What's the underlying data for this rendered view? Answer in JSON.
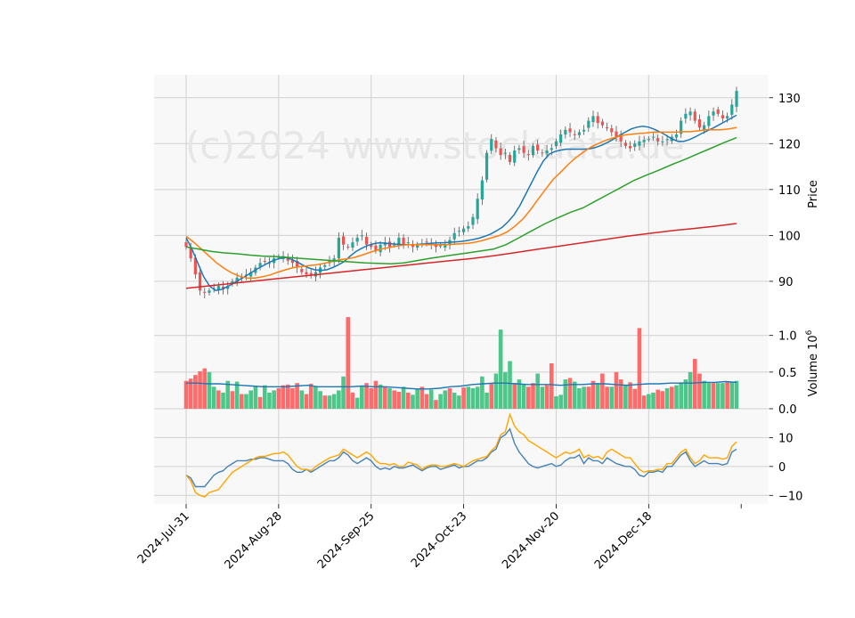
{
  "watermark": "(c)2024 www.stockdata.de",
  "colors": {
    "up": "#26a69a",
    "up_bar": "#4dc789",
    "down": "#ef5350",
    "down_bar": "#ff6b6b",
    "ma_short": "#1f77b4",
    "ma_mid": "#ff7f0e",
    "ma_long": "#2ca02c",
    "ma_200": "#d62728",
    "osc_a": "#4682b4",
    "osc_b": "#ffa500",
    "panel_bg": "#f8f8f8",
    "grid": "#d0d0d0"
  },
  "chart_data": [
    {
      "type": "candlestick",
      "panel": "price",
      "ylabel": "Price",
      "ylim": [
        83,
        135
      ],
      "yticks": [
        90,
        100,
        110,
        120,
        130
      ],
      "x_tick_labels": [
        "2024-Jul-31",
        "2024-Aug-28",
        "2024-Sep-25",
        "2024-Oct-23",
        "2024-Nov-20",
        "2024-Dec-18"
      ],
      "x_tick_index": [
        0,
        20,
        40,
        60,
        80,
        100
      ],
      "n_sessions": 120,
      "candles_summary": "one candle per session; closes approximately as listed",
      "closes": [
        97.5,
        95,
        91.5,
        88,
        87.5,
        88,
        88.5,
        89,
        88.2,
        89,
        90,
        90.8,
        91,
        91.5,
        92,
        93,
        94,
        94.3,
        94,
        95,
        95.3,
        95.5,
        94.5,
        94,
        93,
        92,
        91.5,
        91.5,
        92,
        93,
        93.5,
        94.5,
        95,
        99.5,
        98,
        97.5,
        98.5,
        99.5,
        100,
        98,
        97.5,
        96.8,
        98,
        98.5,
        97.5,
        98,
        99.5,
        98,
        98.5,
        97.5,
        98,
        98.2,
        98.5,
        98,
        97.5,
        97.8,
        98,
        99,
        100.5,
        101,
        101.5,
        102,
        104,
        108,
        112,
        118,
        121,
        119,
        117.5,
        118,
        116,
        118.5,
        119,
        118,
        117.5,
        119.5,
        118.5,
        118,
        118.5,
        119,
        120.5,
        122,
        123,
        122.5,
        122,
        122.5,
        123,
        125,
        126,
        124.5,
        124,
        123.5,
        122.5,
        121.5,
        120.5,
        119.5,
        119,
        120,
        120.5,
        120.8,
        121,
        121.5,
        120.5,
        120.5,
        121,
        121.5,
        122,
        125,
        126.5,
        127,
        125,
        123.5,
        124,
        126,
        127,
        126.5,
        125.5,
        126,
        128.5,
        131.5
      ],
      "series": [
        {
          "name": "",
          "color_key": "ma_short",
          "values": [
            99.5,
            97,
            94,
            91,
            89,
            88,
            88.2,
            88.8,
            89.5,
            90.3,
            91,
            91.8,
            92.6,
            93.3,
            94,
            94.6,
            95,
            95.2,
            94.8,
            94.2,
            93.5,
            92.9,
            92.5,
            92.4,
            92.5,
            93,
            93.6,
            94.3,
            95.5,
            96.5,
            97.2,
            97.8,
            98.2,
            98.4,
            98.3,
            98.2,
            98.1,
            98,
            98,
            98,
            98.1,
            98.2,
            98.3,
            98.4,
            98.4,
            98.5,
            98.6,
            98.7,
            98.9,
            99.1,
            99.4,
            99.8,
            100.3,
            101,
            101.8,
            103,
            104.5,
            106.5,
            109,
            111.5,
            114,
            116.2,
            117.7,
            118.3,
            118.6,
            118.8,
            118.8,
            118.8,
            118.8,
            118.9,
            119.2,
            119.7,
            120.3,
            121,
            121.8,
            122.5,
            123.2,
            123.6,
            123.8,
            123.6,
            123.1,
            122.5,
            121.8,
            121,
            120.5,
            120.5,
            120.9,
            121.5,
            122.2,
            122.8,
            123.4,
            124.1,
            124.8,
            125.5,
            126.2
          ]
        },
        {
          "name": "",
          "color_key": "ma_mid",
          "values": [
            99.8,
            98.5,
            97,
            95.5,
            94,
            92.8,
            91.8,
            91.1,
            90.7,
            90.7,
            91,
            91.4,
            92,
            92.5,
            93,
            93.2,
            93.4,
            93.6,
            93.9,
            94.3,
            94.7,
            94.9,
            95.2,
            95.7,
            96.3,
            96.8,
            97.2,
            97.5,
            97.8,
            98,
            98,
            98,
            98,
            98,
            98,
            98.1,
            98.2,
            98.3,
            98.6,
            99,
            99.5,
            100,
            100.8,
            102,
            103.5,
            105.5,
            107.8,
            110,
            112.2,
            113.8,
            115.5,
            117,
            118.2,
            119.3,
            120.1,
            120.8,
            121.3,
            121.8,
            122,
            122.2,
            122.3,
            122.5,
            122.5,
            122.5,
            122.5,
            122.6,
            122.6,
            122.8,
            123,
            123,
            123,
            123.2,
            123.5
          ]
        },
        {
          "name": "",
          "color_key": "ma_long",
          "values": [
            97.5,
            97,
            96.5,
            96.2,
            96,
            95.7,
            95.5,
            95.4,
            95.2,
            95,
            94.8,
            94.6,
            94.4,
            94.2,
            94,
            93.9,
            93.8,
            94,
            94.5,
            95,
            95.4,
            95.8,
            96.2,
            96.6,
            97,
            98,
            99.5,
            101,
            102.5,
            103.8,
            105,
            106,
            107.5,
            109,
            110.5,
            112,
            113.2,
            114.3,
            115.5,
            116.6,
            117.8,
            119,
            120.2,
            121.3
          ]
        },
        {
          "name": "",
          "color_key": "ma_200",
          "values": [
            88.5,
            89,
            89.5,
            90,
            90.5,
            91,
            91.5,
            92,
            92.5,
            93,
            93.5,
            94,
            94.5,
            95,
            95.6,
            96.3,
            97,
            97.7,
            98.4,
            99.1,
            99.8,
            100.4,
            101,
            101.5,
            102,
            102.6
          ]
        }
      ]
    },
    {
      "type": "bar",
      "panel": "volume",
      "ylabel": "Volume  10^6",
      "ylim": [
        0,
        1.3
      ],
      "yticks": [
        0.0,
        0.5,
        1.0
      ],
      "ytick_labels": [
        "0.0",
        "0.5",
        "1.0"
      ],
      "values": [
        0.38,
        0.41,
        0.46,
        0.51,
        0.55,
        0.5,
        0.3,
        0.25,
        0.22,
        0.38,
        0.24,
        0.37,
        0.2,
        0.2,
        0.25,
        0.3,
        0.16,
        0.32,
        0.22,
        0.25,
        0.28,
        0.32,
        0.33,
        0.28,
        0.35,
        0.25,
        0.2,
        0.34,
        0.3,
        0.24,
        0.18,
        0.18,
        0.2,
        0.25,
        0.44,
        1.25,
        0.22,
        0.15,
        0.3,
        0.35,
        0.28,
        0.38,
        0.33,
        0.3,
        0.28,
        0.25,
        0.23,
        0.3,
        0.22,
        0.19,
        0.27,
        0.3,
        0.2,
        0.26,
        0.12,
        0.2,
        0.25,
        0.28,
        0.22,
        0.18,
        0.29,
        0.3,
        0.28,
        0.3,
        0.44,
        0.22,
        0.34,
        0.48,
        1.08,
        0.5,
        0.65,
        0.35,
        0.4,
        0.34,
        0.3,
        0.35,
        0.48,
        0.3,
        0.32,
        0.62,
        0.17,
        0.19,
        0.4,
        0.42,
        0.37,
        0.28,
        0.3,
        0.3,
        0.38,
        0.35,
        0.48,
        0.3,
        0.3,
        0.5,
        0.4,
        0.33,
        0.36,
        0.27,
        1.1,
        0.18,
        0.2,
        0.22,
        0.26,
        0.24,
        0.28,
        0.3,
        0.32,
        0.36,
        0.4,
        0.5,
        0.68,
        0.48,
        0.38,
        0.35,
        0.35,
        0.35,
        0.35,
        0.36,
        0.37,
        0.38
      ],
      "up": [
        false,
        false,
        false,
        false,
        false,
        true,
        true,
        false,
        true,
        true,
        false,
        true,
        false,
        true,
        true,
        true,
        false,
        true,
        true,
        true,
        false,
        false,
        false,
        false,
        false,
        true,
        false,
        false,
        true,
        true,
        false,
        true,
        true,
        true,
        true,
        false,
        false,
        true,
        true,
        false,
        false,
        false,
        true,
        false,
        true,
        false,
        false,
        true,
        false,
        true,
        true,
        false,
        false,
        true,
        false,
        true,
        true,
        false,
        true,
        true,
        false,
        true,
        true,
        true,
        true,
        true,
        false,
        true,
        true,
        true,
        true,
        false,
        true,
        true,
        false,
        false,
        true,
        true,
        false,
        false,
        true,
        true,
        true,
        false,
        true,
        true,
        true,
        false,
        false,
        true,
        false,
        false,
        true,
        false,
        false,
        true,
        false,
        false,
        false,
        false,
        true,
        true,
        false,
        false,
        true,
        false,
        true,
        true,
        true,
        true,
        false,
        false,
        true,
        true,
        false,
        true,
        true,
        false,
        true,
        true
      ],
      "ma_line": [
        0.35,
        0.35,
        0.34,
        0.34,
        0.33,
        0.32,
        0.31,
        0.3,
        0.3,
        0.3,
        0.31,
        0.32,
        0.3,
        0.3,
        0.3,
        0.3,
        0.31,
        0.3,
        0.3,
        0.29,
        0.28,
        0.27,
        0.27,
        0.28,
        0.3,
        0.31,
        0.33,
        0.34,
        0.35,
        0.35,
        0.34,
        0.33,
        0.33,
        0.33,
        0.32,
        0.33,
        0.33,
        0.34,
        0.34,
        0.33,
        0.32,
        0.33,
        0.34,
        0.34,
        0.35,
        0.35,
        0.35,
        0.36,
        0.36,
        0.37,
        0.36
      ]
    },
    {
      "type": "line",
      "panel": "oscillator",
      "ylim": [
        -13,
        20
      ],
      "yticks": [
        -10,
        0,
        10
      ],
      "ytick_labels": [
        "−10",
        "0",
        "10"
      ],
      "series": [
        {
          "name": "",
          "color_key": "osc_a",
          "values": [
            -3,
            -4,
            -7,
            -7,
            -7,
            -5,
            -3,
            -2,
            -1.5,
            0,
            1,
            2,
            2,
            2,
            2.5,
            2.5,
            3,
            3,
            2.5,
            2,
            2,
            2,
            1,
            -1,
            -2,
            -2,
            -1,
            -2,
            -1,
            0,
            1,
            2,
            2,
            3,
            5,
            4,
            2,
            1,
            2,
            3,
            2,
            0,
            -1,
            -0.5,
            -1,
            0,
            -0.5,
            -0.5,
            0,
            0.5,
            -0.5,
            -1.5,
            -0.5,
            0,
            0,
            -1,
            -0.5,
            0,
            0.5,
            -0.5,
            0,
            0,
            1,
            2,
            2,
            3,
            5,
            6,
            10,
            11,
            13,
            8,
            5,
            3,
            1,
            0,
            -0.5,
            0,
            0.5,
            1,
            0,
            0.5,
            2,
            3,
            3,
            4,
            1,
            3,
            2,
            2,
            1,
            3,
            2,
            1,
            0.5,
            0,
            0,
            -1,
            -3,
            -3.5,
            -2,
            -2,
            -1.5,
            -2,
            0,
            0,
            2,
            4,
            5,
            2,
            0,
            1,
            2,
            1,
            1,
            1,
            0.5,
            1,
            5,
            6
          ]
        },
        {
          "name": "",
          "color_key": "osc_b",
          "values": [
            -3,
            -5,
            -9,
            -10,
            -10.5,
            -9,
            -8.5,
            -8,
            -6,
            -4,
            -2,
            -1,
            0,
            1,
            2,
            3,
            3.5,
            3.5,
            4,
            4.5,
            4.5,
            5,
            4,
            2,
            0,
            -1,
            -1,
            -1.5,
            0,
            1,
            2,
            3,
            3.5,
            4,
            6,
            5,
            4,
            3,
            4,
            5,
            4,
            2,
            1,
            1,
            0.5,
            1,
            0,
            0,
            1.5,
            1,
            0.5,
            -1,
            0,
            0.5,
            0.5,
            0,
            0,
            0.5,
            1,
            0.5,
            0,
            1,
            2,
            2.5,
            3,
            3.5,
            5.5,
            7,
            11,
            12,
            18,
            14,
            12,
            11,
            9,
            8,
            7,
            6,
            5,
            4,
            3,
            4,
            5,
            4.5,
            5,
            6,
            3,
            4,
            3,
            3.5,
            2.5,
            5,
            6,
            5,
            4,
            3,
            3,
            1,
            -1,
            -2,
            -1.5,
            -1.5,
            -1,
            -1,
            1,
            1,
            3,
            5,
            6,
            3,
            1,
            2,
            4,
            3,
            3,
            3,
            2.5,
            3,
            7,
            8.5
          ]
        }
      ]
    }
  ]
}
